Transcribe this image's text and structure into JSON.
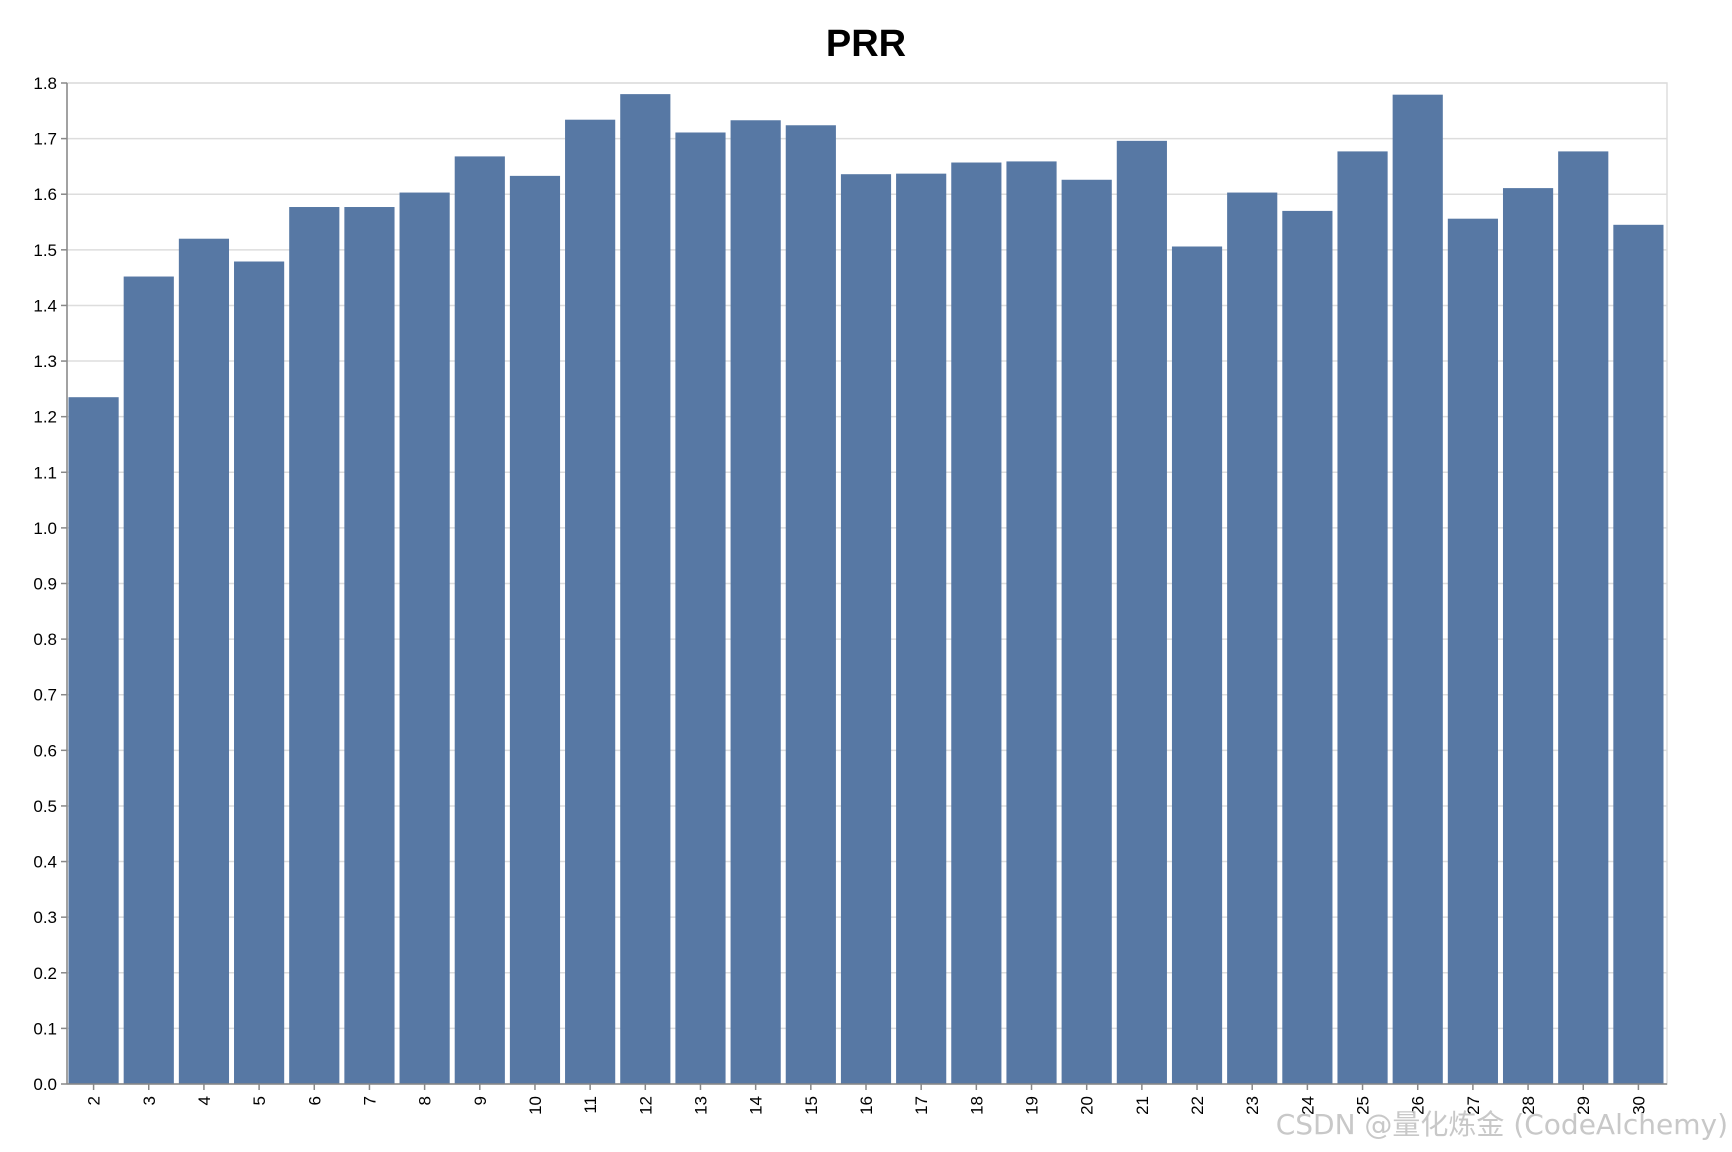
{
  "chart_data": {
    "type": "bar",
    "title": "PRR",
    "xlabel": "",
    "ylabel": "",
    "categories": [
      "2",
      "3",
      "4",
      "5",
      "6",
      "7",
      "8",
      "9",
      "10",
      "11",
      "12",
      "13",
      "14",
      "15",
      "16",
      "17",
      "18",
      "19",
      "20",
      "21",
      "22",
      "23",
      "24",
      "25",
      "26",
      "27",
      "28",
      "29",
      "30"
    ],
    "values": [
      1.235,
      1.452,
      1.52,
      1.479,
      1.577,
      1.577,
      1.603,
      1.668,
      1.633,
      1.734,
      1.78,
      1.711,
      1.733,
      1.724,
      1.636,
      1.637,
      1.657,
      1.659,
      1.626,
      1.696,
      1.506,
      1.603,
      1.57,
      1.677,
      1.779,
      1.556,
      1.611,
      1.677,
      1.545
    ],
    "ylim": [
      0,
      1.8
    ],
    "yticks": [
      "0.0",
      "0.1",
      "0.2",
      "0.3",
      "0.4",
      "0.5",
      "0.6",
      "0.7",
      "0.8",
      "0.9",
      "1.0",
      "1.1",
      "1.2",
      "1.3",
      "1.4",
      "1.5",
      "1.6",
      "1.7",
      "1.8"
    ],
    "bar_color": "#5778a4",
    "grid": true,
    "legend": "none"
  },
  "watermark": "CSDN @量化炼金 (CodeAlchemy)"
}
